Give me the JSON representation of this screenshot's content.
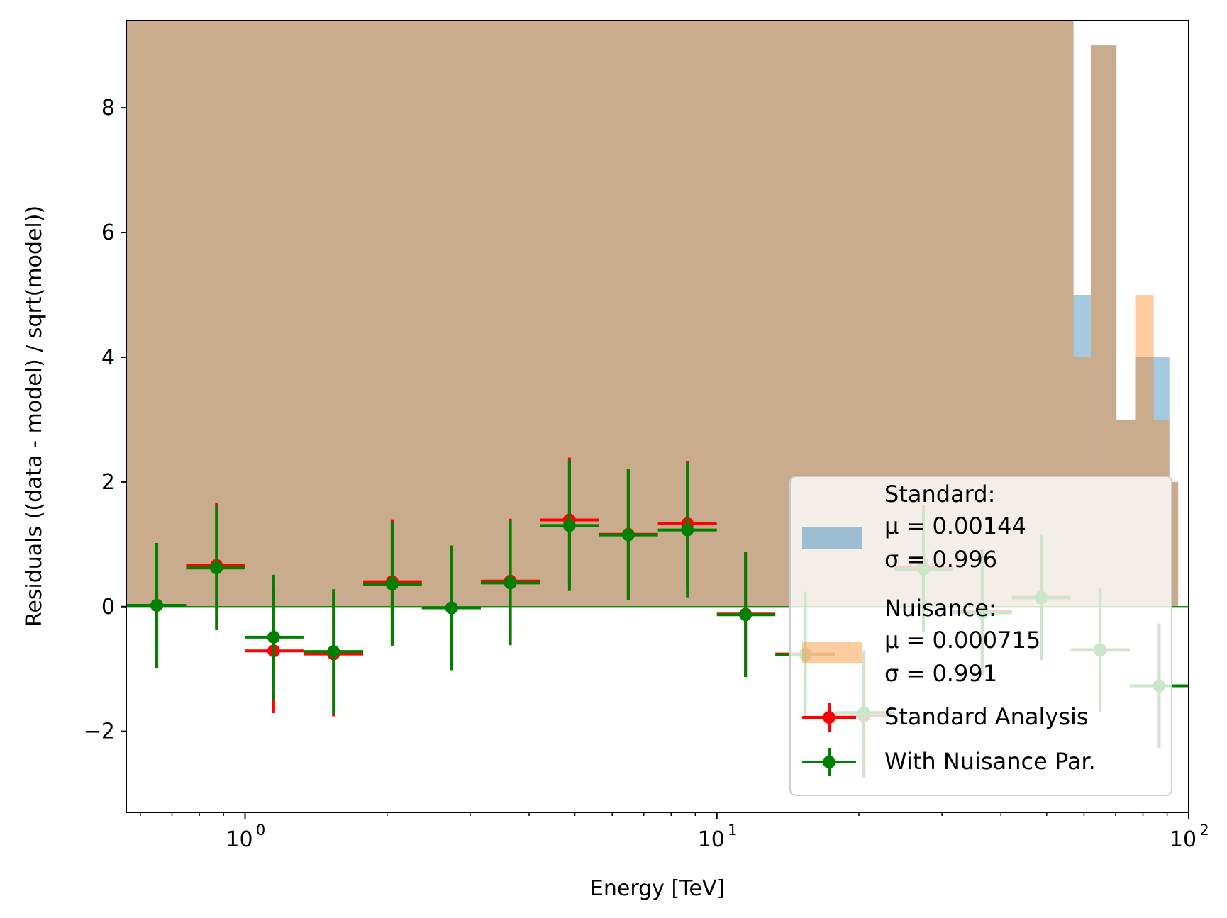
{
  "chart_data": {
    "type": "scatter",
    "xlabel": "Energy [TeV]",
    "ylabel": "Residuals ((data - model) / sqrt(model))",
    "x_scale": "log",
    "xlim": [
      0.56,
      100
    ],
    "ylim": [
      -3.3,
      9.4
    ],
    "x_ticks": [
      {
        "value": 1,
        "base": "10",
        "exp": "0"
      },
      {
        "value": 10,
        "base": "10",
        "exp": "1"
      },
      {
        "value": 100,
        "base": "10",
        "exp": "2"
      }
    ],
    "y_ticks": [
      {
        "value": -2,
        "label": "−2"
      },
      {
        "value": 0,
        "label": "0"
      },
      {
        "value": 2,
        "label": "2"
      },
      {
        "value": 4,
        "label": "4"
      },
      {
        "value": 6,
        "label": "6"
      },
      {
        "value": 8,
        "label": "8"
      }
    ],
    "zero_line_color": "#008000",
    "histograms": [
      {
        "name": "Standard:",
        "stats": [
          "μ = 0.00144",
          "σ = 0.996"
        ],
        "color": "#1f77b4",
        "opacity": 0.4,
        "bins": [
          {
            "x0": 0.56,
            "x1": 57.0,
            "count": 9.4
          },
          {
            "x0": 57.0,
            "x1": 62.0,
            "count": 5
          },
          {
            "x0": 62.0,
            "x1": 70.3,
            "count": 9
          },
          {
            "x0": 70.3,
            "x1": 77.0,
            "count": 3
          },
          {
            "x0": 77.0,
            "x1": 84.3,
            "count": 4
          },
          {
            "x0": 84.3,
            "x1": 91.0,
            "count": 4
          },
          {
            "x0": 91.0,
            "x1": 95.0,
            "count": 2
          }
        ]
      },
      {
        "name": "Nuisance:",
        "stats": [
          "μ = 0.000715",
          "σ = 0.991"
        ],
        "color": "#ff7f0e",
        "opacity": 0.4,
        "bins": [
          {
            "x0": 0.56,
            "x1": 57.0,
            "count": 9.4
          },
          {
            "x0": 57.0,
            "x1": 62.0,
            "count": 4
          },
          {
            "x0": 62.0,
            "x1": 70.3,
            "count": 9
          },
          {
            "x0": 70.3,
            "x1": 77.0,
            "count": 3
          },
          {
            "x0": 77.0,
            "x1": 84.3,
            "count": 5
          },
          {
            "x0": 84.3,
            "x1": 91.0,
            "count": 3
          },
          {
            "x0": 91.0,
            "x1": 95.0,
            "count": 2
          }
        ]
      }
    ],
    "series": [
      {
        "name": "Standard Analysis",
        "color": "#ff0000",
        "points": [
          {
            "x": 0.65,
            "y": 0.02,
            "xlo": 0.56,
            "xhi": 0.75,
            "yerr": 1.0
          },
          {
            "x": 0.87,
            "y": 0.66,
            "xlo": 0.75,
            "xhi": 1.0,
            "yerr": 1.0
          },
          {
            "x": 1.15,
            "y": -0.71,
            "xlo": 1.0,
            "xhi": 1.33,
            "yerr": 1.0
          },
          {
            "x": 1.54,
            "y": -0.76,
            "xlo": 1.33,
            "xhi": 1.78,
            "yerr": 1.0
          },
          {
            "x": 2.05,
            "y": 0.4,
            "xlo": 1.78,
            "xhi": 2.37,
            "yerr": 1.0
          },
          {
            "x": 2.74,
            "y": -0.02,
            "xlo": 2.37,
            "xhi": 3.16,
            "yerr": 1.0
          },
          {
            "x": 3.65,
            "y": 0.41,
            "xlo": 3.16,
            "xhi": 4.22,
            "yerr": 1.0
          },
          {
            "x": 4.87,
            "y": 1.39,
            "xlo": 4.22,
            "xhi": 5.62,
            "yerr": 1.0
          },
          {
            "x": 6.49,
            "y": 1.16,
            "xlo": 5.62,
            "xhi": 7.5,
            "yerr": 1.05
          },
          {
            "x": 8.66,
            "y": 1.33,
            "xlo": 7.5,
            "xhi": 10.0,
            "yerr": 1.0
          },
          {
            "x": 11.5,
            "y": -0.12,
            "xlo": 10.0,
            "xhi": 13.3,
            "yerr": 1.0
          },
          {
            "x": 15.4,
            "y": -0.76,
            "xlo": 13.3,
            "xhi": 17.8,
            "yerr": 1.0
          },
          {
            "x": 20.5,
            "y": -1.75,
            "xlo": 17.8,
            "xhi": 23.7,
            "yerr": 1.0
          },
          {
            "x": 27.4,
            "y": 0.63,
            "xlo": 23.7,
            "xhi": 31.6,
            "yerr": 1.0
          },
          {
            "x": 36.5,
            "y": -0.08,
            "xlo": 31.6,
            "xhi": 42.2,
            "yerr": 1.0
          },
          {
            "x": 48.7,
            "y": 0.15,
            "xlo": 42.2,
            "xhi": 56.2,
            "yerr": 1.0
          },
          {
            "x": 64.9,
            "y": -0.69,
            "xlo": 56.2,
            "xhi": 75.0,
            "yerr": 1.0
          },
          {
            "x": 86.6,
            "y": -1.27,
            "xlo": 75.0,
            "xhi": 100.0,
            "yerr": 1.0
          }
        ]
      },
      {
        "name": "With Nuisance Par.",
        "color": "#008000",
        "points": [
          {
            "x": 0.65,
            "y": 0.02,
            "xlo": 0.56,
            "xhi": 0.75,
            "yerr": 1.0
          },
          {
            "x": 0.87,
            "y": 0.62,
            "xlo": 0.75,
            "xhi": 1.0,
            "yerr": 1.0
          },
          {
            "x": 1.15,
            "y": -0.49,
            "xlo": 1.0,
            "xhi": 1.33,
            "yerr": 1.0
          },
          {
            "x": 1.54,
            "y": -0.72,
            "xlo": 1.33,
            "xhi": 1.78,
            "yerr": 1.0
          },
          {
            "x": 2.05,
            "y": 0.36,
            "xlo": 1.78,
            "xhi": 2.37,
            "yerr": 1.0
          },
          {
            "x": 2.74,
            "y": -0.02,
            "xlo": 2.37,
            "xhi": 3.16,
            "yerr": 1.0
          },
          {
            "x": 3.65,
            "y": 0.38,
            "xlo": 3.16,
            "xhi": 4.22,
            "yerr": 1.0
          },
          {
            "x": 4.87,
            "y": 1.3,
            "xlo": 4.22,
            "xhi": 5.62,
            "yerr": 1.05
          },
          {
            "x": 6.49,
            "y": 1.15,
            "xlo": 5.62,
            "xhi": 7.5,
            "yerr": 1.05
          },
          {
            "x": 8.66,
            "y": 1.23,
            "xlo": 7.5,
            "xhi": 10.0,
            "yerr": 1.08
          },
          {
            "x": 11.5,
            "y": -0.13,
            "xlo": 10.0,
            "xhi": 13.3,
            "yerr": 1.0
          },
          {
            "x": 15.4,
            "y": -0.77,
            "xlo": 13.3,
            "xhi": 17.8,
            "yerr": 1.0
          },
          {
            "x": 20.5,
            "y": -1.7,
            "xlo": 17.8,
            "xhi": 23.7,
            "yerr": 1.0
          },
          {
            "x": 27.4,
            "y": 0.6,
            "xlo": 23.7,
            "xhi": 31.6,
            "yerr": 1.0
          },
          {
            "x": 36.5,
            "y": -0.1,
            "xlo": 31.6,
            "xhi": 42.2,
            "yerr": 1.0
          },
          {
            "x": 48.7,
            "y": 0.14,
            "xlo": 42.2,
            "xhi": 56.2,
            "yerr": 1.0
          },
          {
            "x": 64.9,
            "y": -0.7,
            "xlo": 56.2,
            "xhi": 75.0,
            "yerr": 1.0
          },
          {
            "x": 86.6,
            "y": -1.27,
            "xlo": 75.0,
            "xhi": 100.0,
            "yerr": 1.0
          }
        ]
      }
    ],
    "legend": {
      "placement": "lower-right"
    }
  }
}
